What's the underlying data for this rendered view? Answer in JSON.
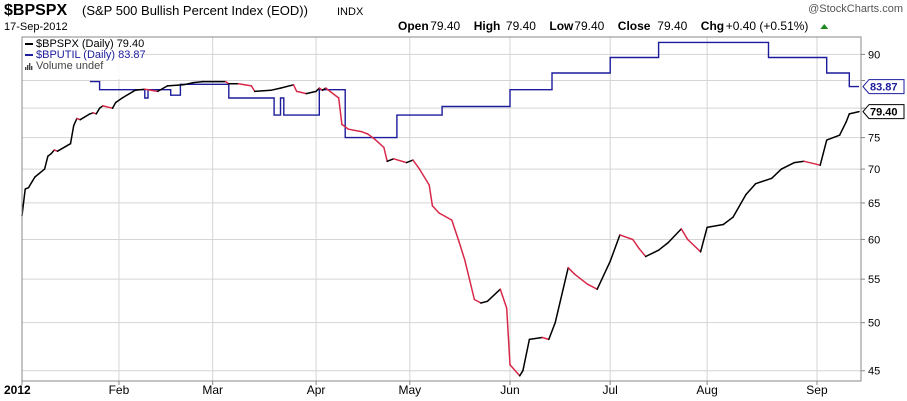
{
  "header": {
    "symbol": "$BPSPX",
    "description": "(S&P 500 Bullish Percent Index (EOD))",
    "exchange": "INDX",
    "date": "17-Sep-2012",
    "watermark": "@StockCharts.com",
    "ohlc": [
      {
        "label": "Open",
        "value": "79.40"
      },
      {
        "label": "High",
        "value": "79.40"
      },
      {
        "label": "Low",
        "value": "79.40"
      },
      {
        "label": "Close",
        "value": "79.40"
      }
    ],
    "chg_label": "Chg",
    "chg_value": "+0.40 (+0.51%)",
    "chg_icon": "up-triangle-icon"
  },
  "legend": [
    {
      "text": "$BPSPX (Daily) 79.40",
      "color": "#000000"
    },
    {
      "text": "$BPUTIL (Daily) 83.87",
      "color": "#1c1c9c"
    },
    {
      "text": "Volume undef",
      "color": "#444444",
      "icon": "bar-chart-icon"
    }
  ],
  "price_tags": [
    {
      "label": "83.87",
      "value": 83.87,
      "color": "#1c1c9c"
    },
    {
      "label": "79.40",
      "value": 79.4,
      "color": "#000000"
    }
  ],
  "colors": {
    "up": "#000000",
    "down": "#d8284a",
    "series2": "#1c1c9c",
    "grid": "#d4d4d4",
    "up_triangle": "#1e8a1e"
  },
  "chart_data": {
    "type": "line",
    "scale": "log",
    "ylim": [
      44,
      93.5
    ],
    "yticks": [
      45,
      50,
      55,
      60,
      65,
      70,
      75,
      80,
      85,
      90
    ],
    "ytick_labels": [
      "45",
      "50",
      "55",
      "60",
      "65",
      "70",
      "75",
      "",
      "",
      "90"
    ],
    "x_range": [
      "2012-01-02",
      "2012-09-17"
    ],
    "xticks": [
      {
        "date": "2012-01-02",
        "label": "2012"
      },
      {
        "date": "2012-02-01",
        "label": "Feb"
      },
      {
        "date": "2012-03-01",
        "label": "Mar"
      },
      {
        "date": "2012-04-02",
        "label": "Apr"
      },
      {
        "date": "2012-05-01",
        "label": "May"
      },
      {
        "date": "2012-06-01",
        "label": "Jun"
      },
      {
        "date": "2012-07-02",
        "label": "Jul"
      },
      {
        "date": "2012-08-01",
        "label": "Aug"
      },
      {
        "date": "2012-09-04",
        "label": "Sep"
      }
    ],
    "grid": true,
    "series": [
      {
        "name": "$BPSPX (Daily)",
        "style": "up-down-colored",
        "points": [
          [
            "2012-01-02",
            63.2
          ],
          [
            "2012-01-03",
            67.0
          ],
          [
            "2012-01-04",
            67.2
          ],
          [
            "2012-01-05",
            68.0
          ],
          [
            "2012-01-06",
            68.8
          ],
          [
            "2012-01-09",
            70.0
          ],
          [
            "2012-01-10",
            72.0
          ],
          [
            "2012-01-11",
            72.4
          ],
          [
            "2012-01-12",
            73.0
          ],
          [
            "2012-01-13",
            72.8
          ],
          [
            "2012-01-17",
            74.0
          ],
          [
            "2012-01-18",
            77.0
          ],
          [
            "2012-01-19",
            78.2
          ],
          [
            "2012-01-20",
            78.0
          ],
          [
            "2012-01-23",
            79.0
          ],
          [
            "2012-01-24",
            79.2
          ],
          [
            "2012-01-25",
            79.0
          ],
          [
            "2012-01-26",
            80.0
          ],
          [
            "2012-01-27",
            80.4
          ],
          [
            "2012-01-30",
            80.0
          ],
          [
            "2012-01-31",
            81.0
          ],
          [
            "2012-02-02",
            81.8
          ],
          [
            "2012-02-06",
            83.2
          ],
          [
            "2012-02-09",
            83.4
          ],
          [
            "2012-02-13",
            83.0
          ],
          [
            "2012-02-16",
            84.0
          ],
          [
            "2012-02-21",
            84.2
          ],
          [
            "2012-02-24",
            84.6
          ],
          [
            "2012-02-27",
            84.8
          ],
          [
            "2012-03-01",
            84.8
          ],
          [
            "2012-03-05",
            84.8
          ],
          [
            "2012-03-06",
            84.4
          ],
          [
            "2012-03-09",
            84.4
          ],
          [
            "2012-03-13",
            84.0
          ],
          [
            "2012-03-14",
            83.0
          ],
          [
            "2012-03-19",
            83.2
          ],
          [
            "2012-03-22",
            83.6
          ],
          [
            "2012-03-26",
            84.2
          ],
          [
            "2012-03-27",
            83.0
          ],
          [
            "2012-03-30",
            82.6
          ],
          [
            "2012-04-02",
            83.0
          ],
          [
            "2012-04-03",
            83.6
          ],
          [
            "2012-04-04",
            83.2
          ],
          [
            "2012-04-05",
            83.6
          ],
          [
            "2012-04-09",
            81.8
          ],
          [
            "2012-04-10",
            77.2
          ],
          [
            "2012-04-12",
            76.4
          ],
          [
            "2012-04-16",
            76.0
          ],
          [
            "2012-04-18",
            75.6
          ],
          [
            "2012-04-20",
            74.8
          ],
          [
            "2012-04-23",
            73.4
          ],
          [
            "2012-04-24",
            71.2
          ],
          [
            "2012-04-26",
            71.6
          ],
          [
            "2012-04-30",
            71.0
          ],
          [
            "2012-05-02",
            71.4
          ],
          [
            "2012-05-04",
            70.0
          ],
          [
            "2012-05-07",
            67.6
          ],
          [
            "2012-05-08",
            64.6
          ],
          [
            "2012-05-10",
            63.6
          ],
          [
            "2012-05-14",
            62.6
          ],
          [
            "2012-05-16",
            60.0
          ],
          [
            "2012-05-18",
            57.4
          ],
          [
            "2012-05-21",
            52.6
          ],
          [
            "2012-05-23",
            52.2
          ],
          [
            "2012-05-25",
            52.4
          ],
          [
            "2012-05-29",
            53.8
          ],
          [
            "2012-05-31",
            51.6
          ],
          [
            "2012-06-01",
            45.6
          ],
          [
            "2012-06-04",
            44.5
          ],
          [
            "2012-06-05",
            45.0
          ],
          [
            "2012-06-07",
            48.2
          ],
          [
            "2012-06-11",
            48.4
          ],
          [
            "2012-06-13",
            48.2
          ],
          [
            "2012-06-15",
            50.0
          ],
          [
            "2012-06-19",
            56.4
          ],
          [
            "2012-06-21",
            55.6
          ],
          [
            "2012-06-25",
            54.4
          ],
          [
            "2012-06-28",
            53.8
          ],
          [
            "2012-07-02",
            57.2
          ],
          [
            "2012-07-05",
            60.6
          ],
          [
            "2012-07-09",
            60.0
          ],
          [
            "2012-07-11",
            58.8
          ],
          [
            "2012-07-13",
            57.8
          ],
          [
            "2012-07-17",
            58.6
          ],
          [
            "2012-07-20",
            59.6
          ],
          [
            "2012-07-24",
            61.4
          ],
          [
            "2012-07-26",
            60.0
          ],
          [
            "2012-07-30",
            58.4
          ],
          [
            "2012-08-01",
            61.6
          ],
          [
            "2012-08-06",
            62.0
          ],
          [
            "2012-08-09",
            63.0
          ],
          [
            "2012-08-13",
            66.2
          ],
          [
            "2012-08-16",
            67.8
          ],
          [
            "2012-08-21",
            68.6
          ],
          [
            "2012-08-24",
            70.0
          ],
          [
            "2012-08-28",
            71.0
          ],
          [
            "2012-08-31",
            71.2
          ],
          [
            "2012-09-05",
            70.6
          ],
          [
            "2012-09-07",
            74.6
          ],
          [
            "2012-09-11",
            75.4
          ],
          [
            "2012-09-13",
            77.6
          ],
          [
            "2012-09-14",
            79.0
          ],
          [
            "2012-09-17",
            79.4
          ]
        ]
      },
      {
        "name": "$BPUTIL (Daily)",
        "style": "step",
        "color": "#1c1c9c",
        "points": [
          [
            "2012-01-23",
            84.8
          ],
          [
            "2012-01-26",
            83.3
          ],
          [
            "2012-02-08",
            83.3
          ],
          [
            "2012-02-09",
            81.8
          ],
          [
            "2012-02-10",
            83.3
          ],
          [
            "2012-02-17",
            82.3
          ],
          [
            "2012-02-20",
            84.3
          ],
          [
            "2012-03-05",
            84.3
          ],
          [
            "2012-03-06",
            81.8
          ],
          [
            "2012-03-19",
            81.8
          ],
          [
            "2012-03-20",
            78.8
          ],
          [
            "2012-03-22",
            81.8
          ],
          [
            "2012-03-23",
            78.8
          ],
          [
            "2012-04-02",
            78.8
          ],
          [
            "2012-04-03",
            83.3
          ],
          [
            "2012-04-10",
            83.3
          ],
          [
            "2012-04-11",
            75.0
          ],
          [
            "2012-04-26",
            75.0
          ],
          [
            "2012-04-27",
            78.8
          ],
          [
            "2012-05-10",
            78.8
          ],
          [
            "2012-05-11",
            80.3
          ],
          [
            "2012-05-31",
            80.3
          ],
          [
            "2012-06-01",
            83.3
          ],
          [
            "2012-06-13",
            83.3
          ],
          [
            "2012-06-14",
            86.4
          ],
          [
            "2012-06-29",
            86.4
          ],
          [
            "2012-07-02",
            89.4
          ],
          [
            "2012-07-16",
            89.4
          ],
          [
            "2012-07-17",
            92.4
          ],
          [
            "2012-08-17",
            92.4
          ],
          [
            "2012-08-20",
            89.4
          ],
          [
            "2012-09-06",
            89.4
          ],
          [
            "2012-09-07",
            86.4
          ],
          [
            "2012-09-13",
            86.4
          ],
          [
            "2012-09-14",
            83.87
          ],
          [
            "2012-09-17",
            83.87
          ]
        ]
      }
    ]
  }
}
